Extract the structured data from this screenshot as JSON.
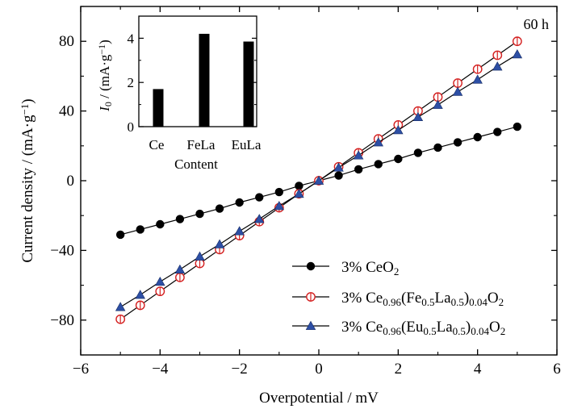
{
  "chart_data": [
    {
      "type": "line",
      "annotation": "60 h",
      "xlabel": "Overpotential / mV",
      "ylabel_parts": [
        "Current density / (mA·g",
        "−1",
        ")"
      ],
      "xlim": [
        -6,
        6
      ],
      "ylim": [
        -100,
        100
      ],
      "xticks": [
        -6,
        -4,
        -2,
        0,
        2,
        4,
        6
      ],
      "xtick_labels": [
        "−6",
        "−4",
        "−2",
        "0",
        "2",
        "4",
        "6"
      ],
      "yticks": [
        -80,
        -40,
        0,
        40,
        80
      ],
      "ytick_labels": [
        "−80",
        "−40",
        "0",
        "40",
        "80"
      ],
      "legend_position": "bottom-right",
      "x": [
        -5,
        -4.5,
        -4,
        -3.5,
        -3,
        -2.5,
        -2,
        -1.5,
        -1,
        -0.5,
        0,
        0.5,
        1,
        1.5,
        2,
        2.5,
        3,
        3.5,
        4,
        4.5,
        5
      ],
      "series": [
        {
          "name_parts": [
            {
              "t": "3% CeO",
              "s": "normal"
            },
            {
              "t": "2",
              "s": "sub"
            }
          ],
          "marker": "filled-circle",
          "color": "#000000",
          "values": [
            -31,
            -28,
            -25,
            -22,
            -19,
            -16,
            -12.5,
            -9.5,
            -6.5,
            -3,
            0,
            3,
            6.5,
            9.5,
            12.5,
            16,
            19,
            22,
            25,
            28,
            31
          ]
        },
        {
          "name_parts": [
            {
              "t": "3% Ce",
              "s": "normal"
            },
            {
              "t": "0.96",
              "s": "sub"
            },
            {
              "t": "(Fe",
              "s": "normal"
            },
            {
              "t": "0.5",
              "s": "sub"
            },
            {
              "t": "La",
              "s": "normal"
            },
            {
              "t": "0.5",
              "s": "sub"
            },
            {
              "t": ")",
              "s": "normal"
            },
            {
              "t": "0.04",
              "s": "sub"
            },
            {
              "t": "O",
              "s": "normal"
            },
            {
              "t": "2",
              "s": "sub"
            }
          ],
          "marker": "open-circle-cross",
          "color": "#d42020",
          "values": [
            -79.5,
            -71.5,
            -63.5,
            -55.5,
            -47.5,
            -39.5,
            -31.5,
            -23.5,
            -15.5,
            -7.5,
            0,
            8,
            16,
            24,
            32,
            40,
            48,
            56,
            64,
            72,
            80
          ]
        },
        {
          "name_parts": [
            {
              "t": "3% Ce",
              "s": "normal"
            },
            {
              "t": "0.96",
              "s": "sub"
            },
            {
              "t": "(Eu",
              "s": "normal"
            },
            {
              "t": "0.5",
              "s": "sub"
            },
            {
              "t": "La",
              "s": "normal"
            },
            {
              "t": "0.5",
              "s": "sub"
            },
            {
              "t": ")",
              "s": "normal"
            },
            {
              "t": "0.04",
              "s": "sub"
            },
            {
              "t": "O",
              "s": "normal"
            },
            {
              "t": "2",
              "s": "sub"
            }
          ],
          "marker": "filled-triangle",
          "color": "#2d4fa5",
          "values": [
            -72.5,
            -65.5,
            -58,
            -51,
            -43.5,
            -36.5,
            -29,
            -22,
            -14.5,
            -7.5,
            0,
            7.5,
            14.5,
            22,
            29,
            36.5,
            43.5,
            51,
            58,
            65.5,
            72.5
          ]
        }
      ]
    },
    {
      "type": "bar",
      "categories": [
        "Ce",
        "FeLa",
        "EuLa"
      ],
      "values": [
        1.7,
        4.2,
        3.85
      ],
      "xlabel": "Content",
      "ylabel_parts": [
        {
          "t": "I",
          "s": "ital"
        },
        {
          "t": "0",
          "s": "sub"
        },
        {
          "t": " / (mA·g",
          "s": "normal"
        },
        {
          "t": "−1",
          "s": "sup"
        },
        {
          "t": ")",
          "s": "normal"
        }
      ],
      "ylim": [
        0,
        5
      ],
      "yticks": [
        0,
        2,
        4
      ],
      "ytick_labels": [
        "0",
        "2",
        "4"
      ],
      "bar_color": "#000000"
    }
  ]
}
